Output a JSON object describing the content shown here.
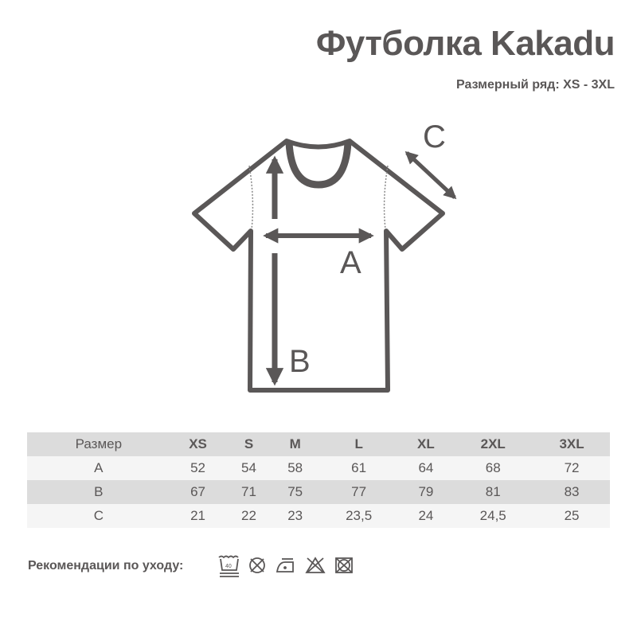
{
  "title": "Футболка Kakadu",
  "subtitle": "Размерный ряд: XS - 3XL",
  "diagram": {
    "labels": {
      "a": "A",
      "b": "B",
      "c": "C"
    }
  },
  "table": {
    "header": [
      "Размер",
      "XS",
      "S",
      "M",
      "L",
      "XL",
      "2XL",
      "3XL"
    ],
    "rows": [
      [
        "A",
        "52",
        "54",
        "58",
        "61",
        "64",
        "68",
        "72"
      ],
      [
        "B",
        "67",
        "71",
        "75",
        "77",
        "79",
        "81",
        "83"
      ],
      [
        "C",
        "21",
        "22",
        "23",
        "23,5",
        "24",
        "24,5",
        "25"
      ]
    ]
  },
  "care": {
    "label": "Рекомендации по уходу:",
    "wash_temp": "40",
    "icons": [
      "wash-40-gentle-icon",
      "no-tumble-dry-icon",
      "iron-low-icon",
      "no-bleach-icon",
      "no-dry-clean-icon"
    ]
  },
  "colors": {
    "ink": "#5a5757",
    "row_dark": "#dcdcdc",
    "row_light": "#f5f5f5"
  }
}
